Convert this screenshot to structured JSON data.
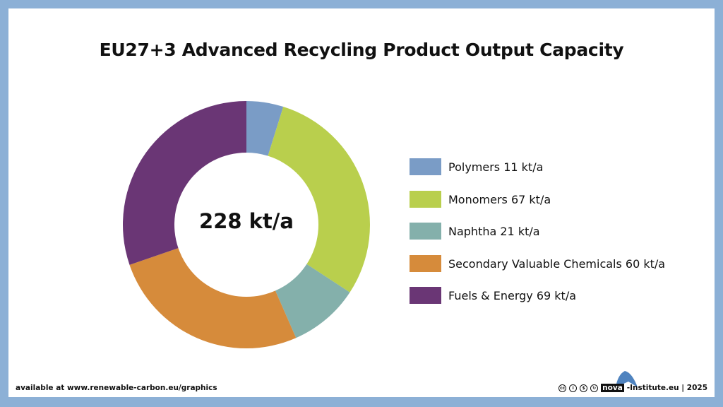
{
  "chart_data": {
    "type": "pie",
    "style": "donut",
    "title": "EU27+3 Advanced Recycling Product Output Capacity",
    "center_label": "228 kt/a",
    "legend_position": "right",
    "unit": "kt/a",
    "slices": [
      {
        "label": "Polymers 11 kt/a",
        "name": "Polymers",
        "value": 11,
        "color": "#7a9cc6"
      },
      {
        "label": "Monomers 67 kt/a",
        "name": "Monomers",
        "value": 67,
        "color": "#b9cf4d"
      },
      {
        "label": "Naphtha 21 kt/a",
        "name": "Naphtha",
        "value": 21,
        "color": "#84b0ab"
      },
      {
        "label": "Secondary Valuable Chemicals 60 kt/a",
        "name": "Secondary Valuable Chemicals",
        "value": 60,
        "color": "#d68b3b"
      },
      {
        "label": "Fuels & Energy 69 kt/a",
        "name": "Fuels & Energy",
        "value": 69,
        "color": "#6a3675"
      }
    ]
  },
  "footer": {
    "source": "available at www.renewable-carbon.eu/graphics",
    "logo_text": "nova",
    "credit": "-Institute.eu | 2025"
  }
}
